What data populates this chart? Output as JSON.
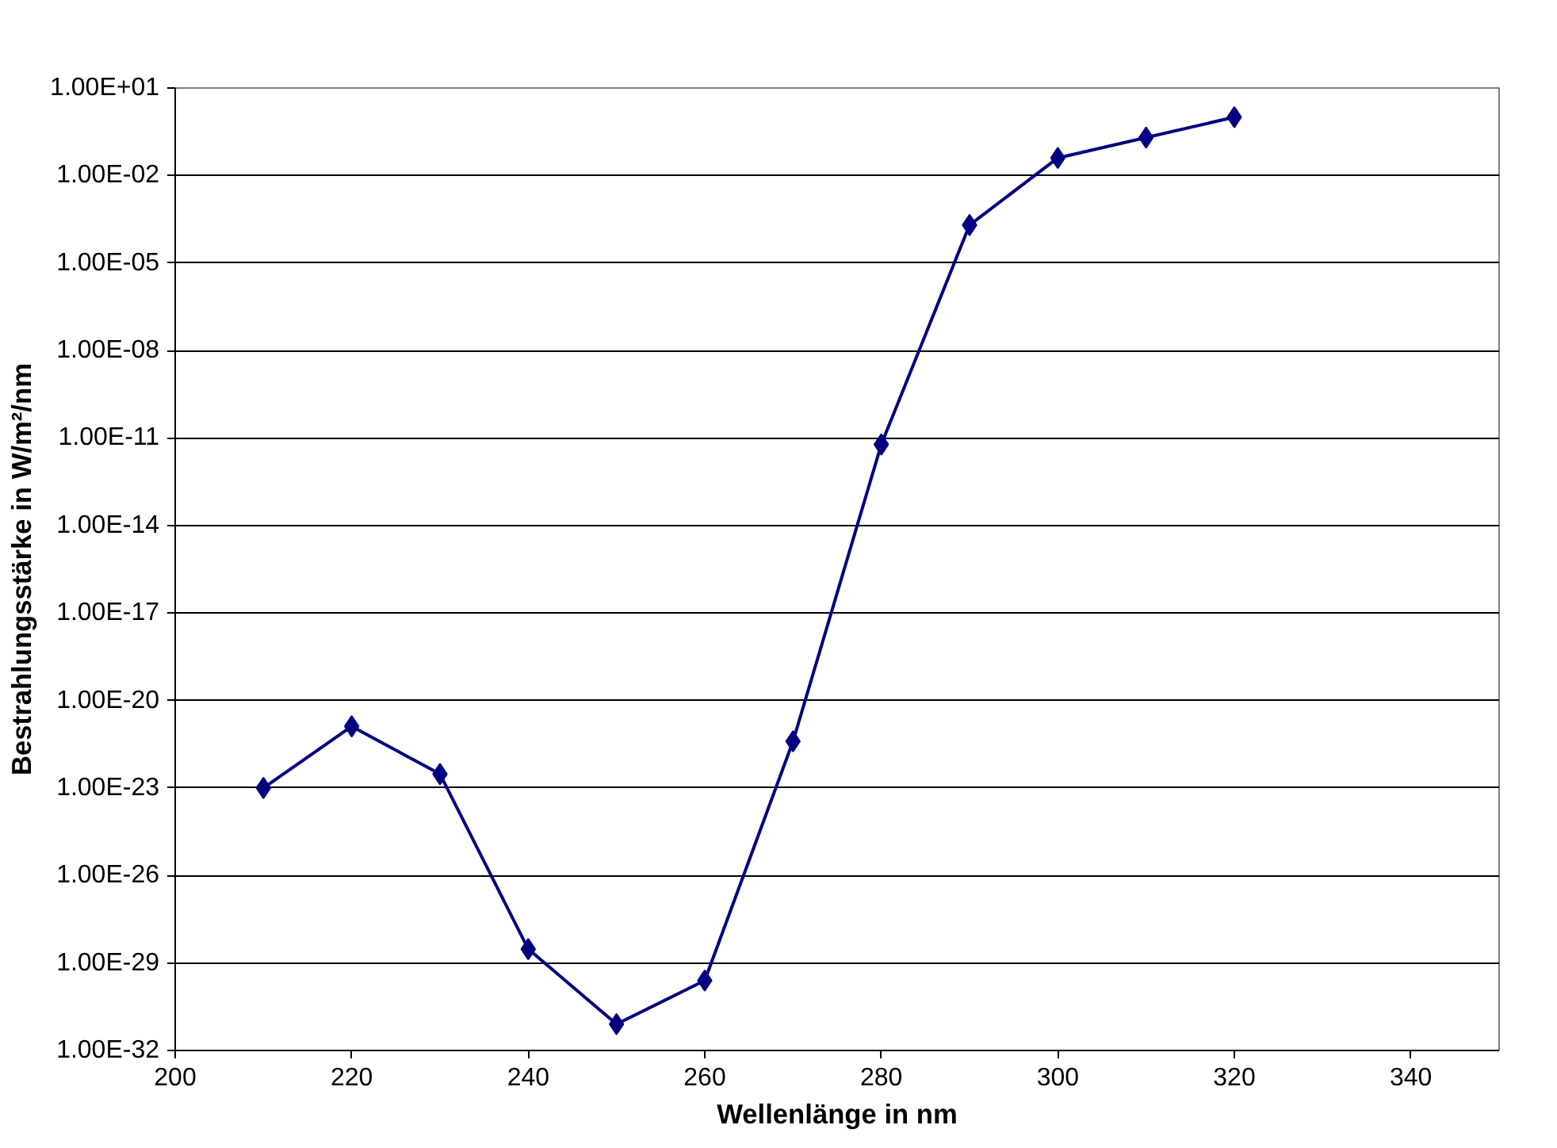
{
  "chart_data": {
    "type": "line",
    "xlabel": "Wellenlänge in nm",
    "ylabel": "Bestrahlungsstärke in W/m²/nm",
    "log": "y",
    "grid": "y",
    "marker": "diamond",
    "x": [
      210,
      220,
      230,
      240,
      250,
      260,
      270,
      280,
      290,
      300,
      310,
      320
    ],
    "series": [
      {
        "color": "#000080",
        "values": [
          1e-23,
          1.3e-21,
          3e-23,
          3e-29,
          8e-32,
          2.5e-30,
          4e-22,
          6e-12,
          0.0002,
          0.04,
          0.2,
          1.0
        ]
      }
    ],
    "xlim": [
      200,
      350
    ],
    "xticks": [
      200,
      220,
      240,
      260,
      280,
      300,
      320,
      340
    ],
    "ylim": [
      1e-32,
      10
    ],
    "yticks": [
      {
        "value": 10,
        "label": "1.00E+01"
      },
      {
        "value": 0.01,
        "label": "1.00E-02"
      },
      {
        "value": 1e-05,
        "label": "1.00E-05"
      },
      {
        "value": 1e-08,
        "label": "1.00E-08"
      },
      {
        "value": 1e-11,
        "label": "1.00E-11"
      },
      {
        "value": 1e-14,
        "label": "1.00E-14"
      },
      {
        "value": 1e-17,
        "label": "1.00E-17"
      },
      {
        "value": 1e-20,
        "label": "1.00E-20"
      },
      {
        "value": 1e-23,
        "label": "1.00E-23"
      },
      {
        "value": 1e-26,
        "label": "1.00E-26"
      },
      {
        "value": 1e-29,
        "label": "1.00E-29"
      },
      {
        "value": 1e-32,
        "label": "1.00E-32"
      }
    ]
  }
}
